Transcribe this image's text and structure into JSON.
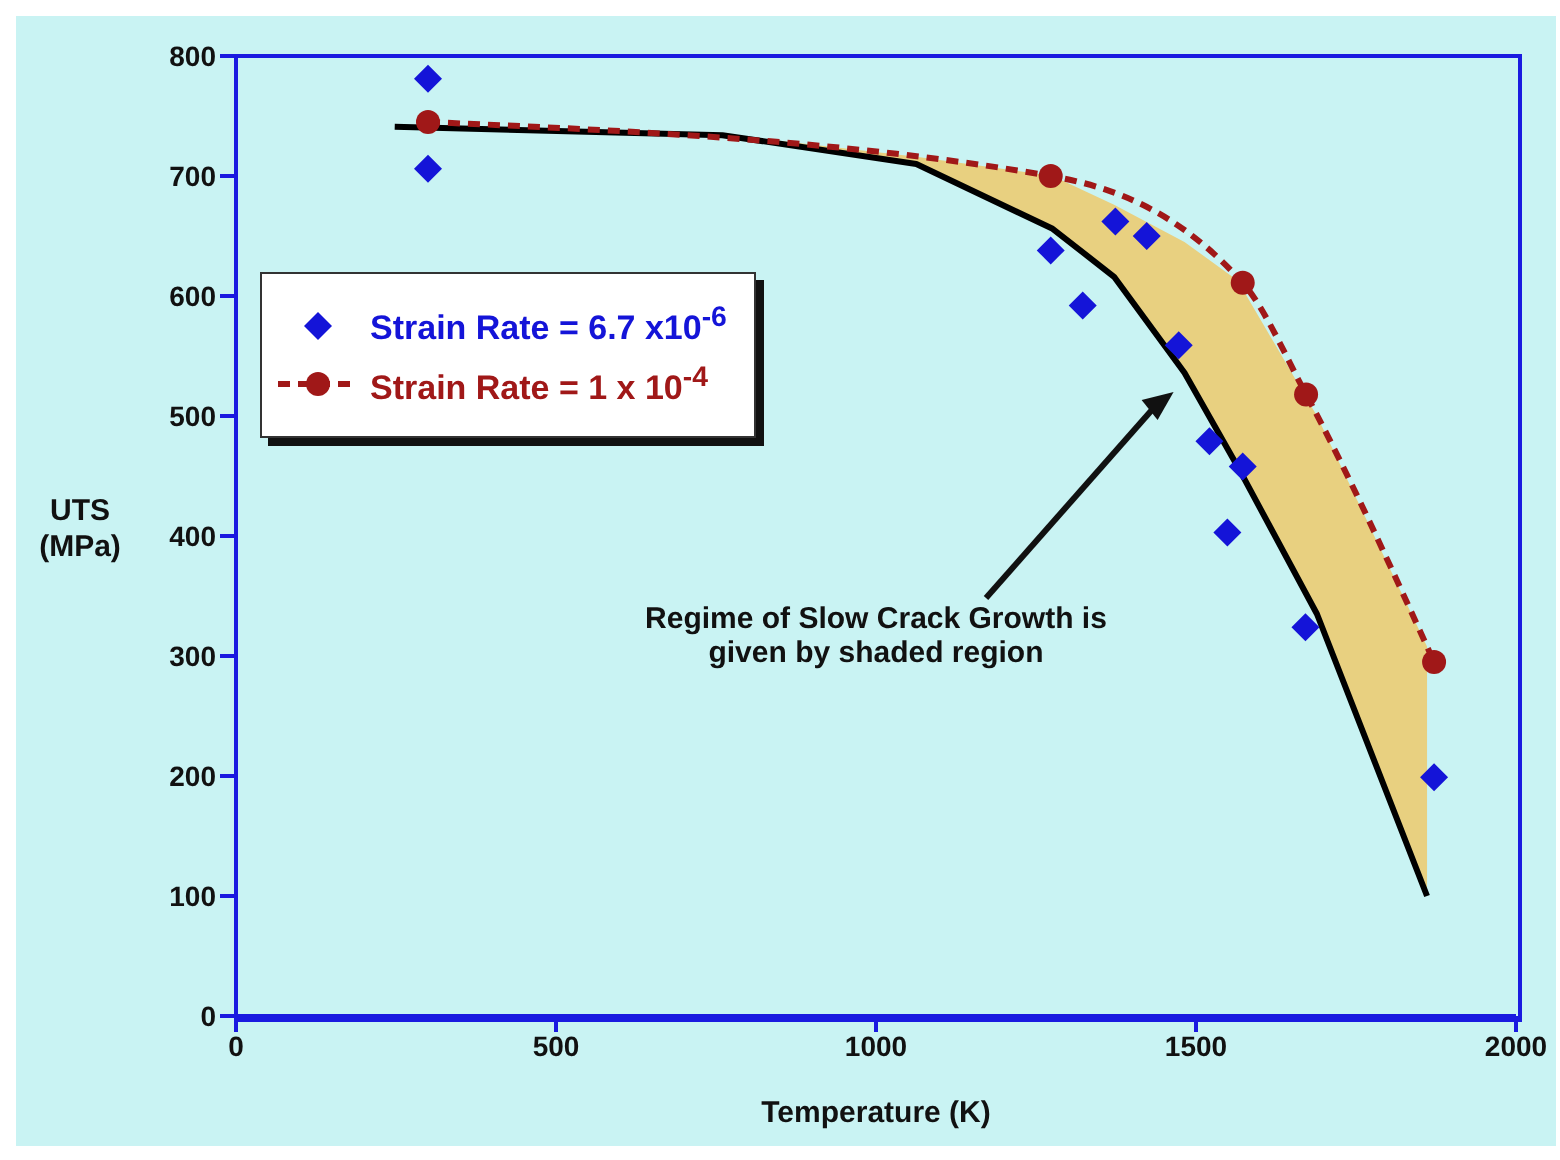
{
  "chart_data": {
    "type": "scatter",
    "xlabel": "Temperature (K)",
    "ylabel": "UTS (MPa)",
    "xlim": [
      0,
      2000
    ],
    "xticks": [
      0,
      500,
      1000,
      1500,
      2000
    ],
    "ylim": [
      0,
      800
    ],
    "yticks": [
      0,
      100,
      200,
      300,
      400,
      500,
      600,
      700,
      800
    ],
    "grid": false,
    "legend": "top left",
    "annotations": [
      "Regime of Slow Crack Growth is given by shaded region"
    ],
    "series": [
      {
        "type": "line",
        "color": "#000000",
        "marker": "none",
        "line_style": "solid",
        "x": [
          248,
          760,
          1063,
          1276,
          1372,
          1482,
          1565,
          1689,
          1861
        ],
        "values": [
          741,
          734,
          710,
          656,
          616,
          536,
          458,
          335,
          100
        ],
        "lower": [
          741,
          734,
          710,
          656,
          616,
          536,
          458,
          335,
          100
        ],
        "upper": [
          741,
          735,
          716,
          700,
          676,
          645,
          613,
          500,
          308
        ]
      },
      {
        "type": "line",
        "name": "Strain Rate = 1 x 10$^{-4}$",
        "color": "#a01818",
        "marker": "circle",
        "line_style": "dashed",
        "x": [
          300,
          1273,
          1573,
          1672,
          1872
        ],
        "values": [
          745,
          700,
          611,
          518,
          295
        ]
      },
      {
        "name": "Strain Rate = 6.7 x10$^{-6}$",
        "color": "#1414d8",
        "marker": "diamond",
        "x": [
          300,
          300,
          1273,
          1323,
          1374,
          1423,
          1473,
          1521,
          1549,
          1573,
          1671,
          1872
        ],
        "values": [
          781,
          706,
          638,
          592,
          662,
          650,
          559,
          479,
          403,
          458,
          324,
          199
        ]
      }
    ]
  }
}
